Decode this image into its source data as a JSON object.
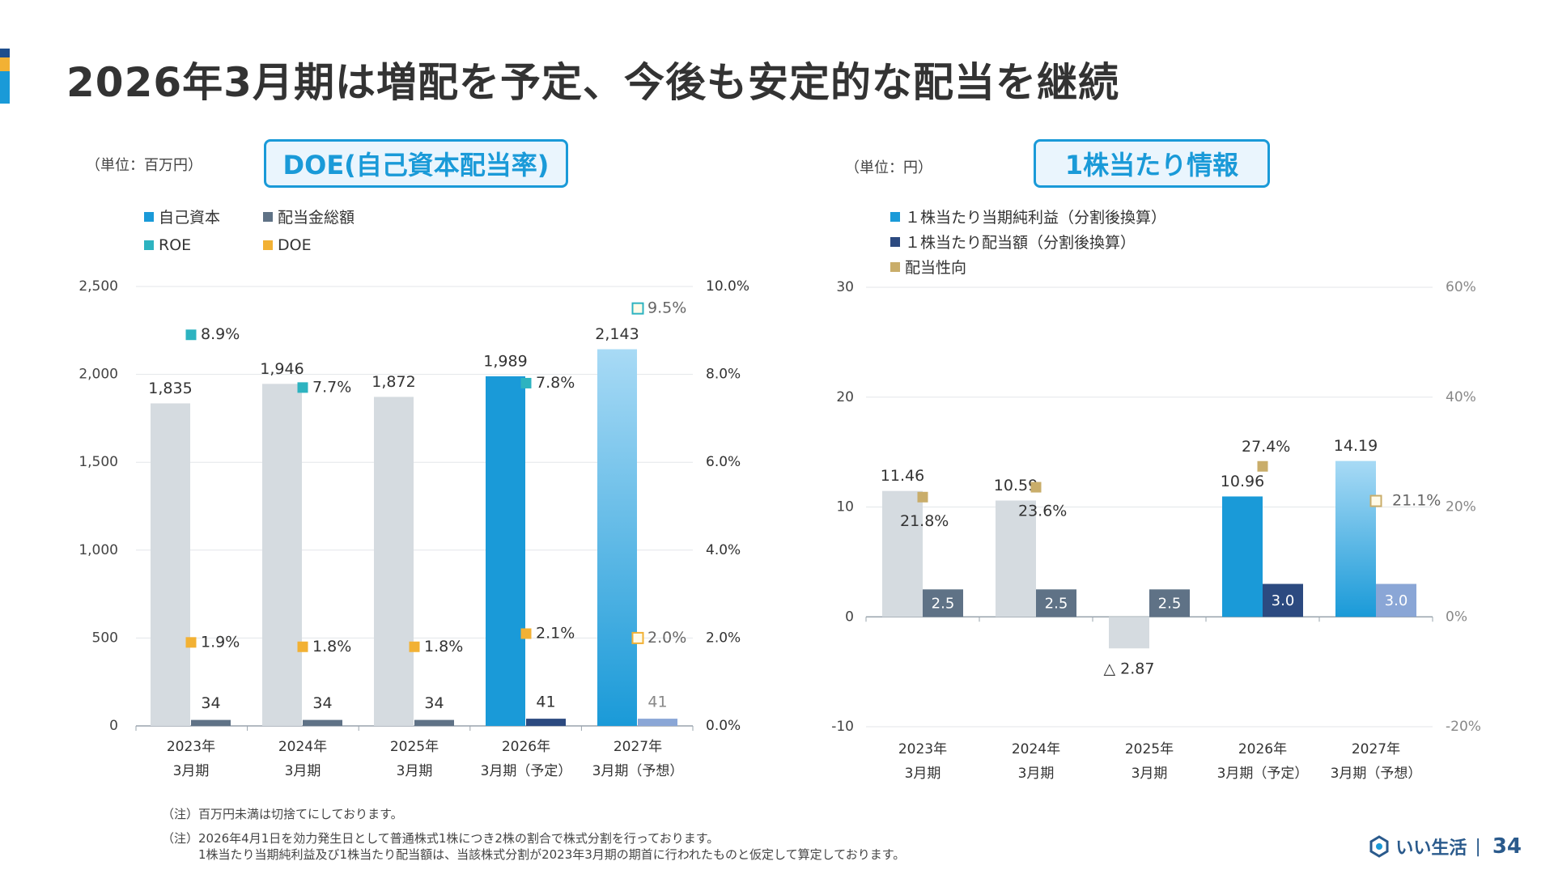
{
  "page": {
    "title": "2026年3月期は増配を予定、今後も安定的な配当を継続",
    "accent_colors": [
      "#1f4e8c",
      "#f2b134",
      "#1a9ad8"
    ]
  },
  "left": {
    "unit": "（単位：百万円）",
    "title": "DOE(自己資本配当率)",
    "legend": [
      {
        "label": "自己資本",
        "color": "#1a9ad8"
      },
      {
        "label": "配当金総額",
        "color": "#5f7286"
      },
      {
        "label": "ROE",
        "color": "#2db3c0"
      },
      {
        "label": "DOE",
        "color": "#f2b134"
      }
    ]
  },
  "right": {
    "unit": "（単位：円）",
    "title": "1株当たり情報",
    "legend": [
      {
        "label": "１株当たり当期純利益（分割後換算）",
        "color": "#1a9ad8"
      },
      {
        "label": "１株当たり配当額（分割後換算）",
        "color": "#2c4a80"
      },
      {
        "label": "配当性向",
        "color": "#c9ad6a"
      }
    ]
  },
  "notes": [
    "（注）百万円未満は切捨てにしております。",
    "（注）2026年4月1日を効力発生日として普通株式1株につき2株の割合で株式分割を行っております。",
    "　　　1株当たり当期純利益及び1株当たり配当額は、当該株式分割が2023年3月期の期首に行われたものと仮定して算定しております。"
  ],
  "footer": {
    "logo_text": "いい生活",
    "separator": "|",
    "page_number": "34"
  },
  "chart_data": [
    {
      "type": "bar",
      "title": "DOE(自己資本配当率)",
      "categories": [
        [
          "2023年",
          "3月期"
        ],
        [
          "2024年",
          "3月期"
        ],
        [
          "2025年",
          "3月期"
        ],
        [
          "2026年",
          "3月期（予定）"
        ],
        [
          "2027年",
          "3月期（予想）"
        ]
      ],
      "ylim": [
        0,
        2500
      ],
      "yticks": [
        0,
        500,
        1000,
        1500,
        2000,
        2500
      ],
      "ytick_labels": [
        "0",
        "500",
        "1,000",
        "1,500",
        "2,000",
        "2,500"
      ],
      "y2lim": [
        0,
        10
      ],
      "y2ticks": [
        0,
        2,
        4,
        6,
        8,
        10
      ],
      "y2tick_labels": [
        "0.0%",
        "2.0%",
        "4.0%",
        "6.0%",
        "8.0%",
        "10.0%"
      ],
      "grid": true,
      "series": [
        {
          "name": "自己資本",
          "kind": "bar",
          "axis": "left",
          "values": [
            1835,
            1946,
            1872,
            1989,
            2143
          ],
          "labels": [
            "1,835",
            "1,946",
            "1,872",
            "1,989",
            "2,143"
          ],
          "colors": [
            "#d5dbe0",
            "#d5dbe0",
            "#d5dbe0",
            "#1a9ad8",
            "gradient"
          ]
        },
        {
          "name": "配当金総額",
          "kind": "bar",
          "axis": "left",
          "values": [
            34,
            34,
            34,
            41,
            41
          ],
          "labels": [
            "34",
            "34",
            "34",
            "41",
            "41"
          ],
          "colors": [
            "#5f7286",
            "#5f7286",
            "#5f7286",
            "#2c4a80",
            "#8aa6d6"
          ]
        },
        {
          "name": "ROE",
          "kind": "marker",
          "axis": "right",
          "color": "#2db3c0",
          "values": [
            8.9,
            7.7,
            null,
            7.8,
            9.5
          ],
          "labels": [
            "8.9%",
            "7.7%",
            "",
            "7.8%",
            "9.5%"
          ],
          "hollow": [
            false,
            false,
            false,
            false,
            true
          ]
        },
        {
          "name": "DOE",
          "kind": "marker",
          "axis": "right",
          "color": "#f2b134",
          "values": [
            1.9,
            1.8,
            1.8,
            2.1,
            2.0
          ],
          "labels": [
            "1.9%",
            "1.8%",
            "1.8%",
            "2.1%",
            "2.0%"
          ],
          "hollow": [
            false,
            false,
            false,
            false,
            true
          ]
        }
      ]
    },
    {
      "type": "bar",
      "title": "1株当たり情報",
      "categories": [
        [
          "2023年",
          "3月期"
        ],
        [
          "2024年",
          "3月期"
        ],
        [
          "2025年",
          "3月期"
        ],
        [
          "2026年",
          "3月期（予定）"
        ],
        [
          "2027年",
          "3月期（予想）"
        ]
      ],
      "ylim": [
        -10,
        30
      ],
      "yticks": [
        -10,
        0,
        10,
        20,
        30
      ],
      "ytick_labels": [
        "-10",
        "0",
        "10",
        "20",
        "30"
      ],
      "y2lim": [
        -20,
        60
      ],
      "y2ticks": [
        -20,
        0,
        20,
        40,
        60
      ],
      "y2tick_labels": [
        "-20%",
        "0%",
        "20%",
        "40%",
        "60%"
      ],
      "grid": true,
      "series": [
        {
          "name": "１株当たり当期純利益（分割後換算）",
          "kind": "bar",
          "axis": "left",
          "values": [
            11.46,
            10.59,
            -2.87,
            10.96,
            14.19
          ],
          "labels": [
            "11.46",
            "10.59",
            "△ 2.87",
            "10.96",
            "14.19"
          ],
          "colors": [
            "#d5dbe0",
            "#d5dbe0",
            "#d5dbe0",
            "#1a9ad8",
            "gradient"
          ]
        },
        {
          "name": "１株当たり配当額（分割後換算）",
          "kind": "bar",
          "axis": "left",
          "values": [
            2.5,
            2.5,
            2.5,
            3.0,
            3.0
          ],
          "labels": [
            "2.5",
            "2.5",
            "2.5",
            "3.0",
            "3.0"
          ],
          "colors": [
            "#5f7286",
            "#5f7286",
            "#5f7286",
            "#2c4a80",
            "#8aa6d6"
          ]
        },
        {
          "name": "配当性向",
          "kind": "marker",
          "axis": "right",
          "color": "#c9ad6a",
          "values": [
            21.8,
            23.6,
            null,
            27.4,
            21.1
          ],
          "labels": [
            "21.8%",
            "23.6%",
            "",
            "27.4%",
            "21.1%"
          ],
          "hollow": [
            false,
            false,
            false,
            false,
            true
          ]
        }
      ]
    }
  ]
}
